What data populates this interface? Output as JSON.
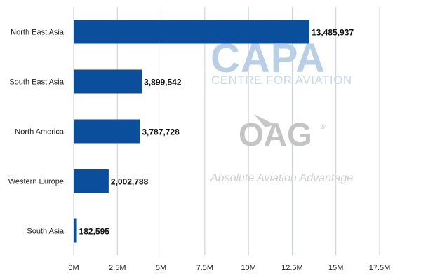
{
  "chart_data": {
    "type": "bar",
    "orientation": "horizontal",
    "categories": [
      "North East Asia",
      "South East Asia",
      "North America",
      "Western Europe",
      "South Asia"
    ],
    "values": [
      13485937,
      3899542,
      3787728,
      2002788,
      182595
    ],
    "value_labels": [
      "13,485,937",
      "3,899,542",
      "3,787,728",
      "2,002,788",
      "182,595"
    ],
    "xlim": [
      0,
      17500000
    ],
    "x_ticks": [
      0,
      2500000,
      5000000,
      7500000,
      10000000,
      12500000,
      15000000,
      17500000
    ],
    "x_tick_labels": [
      "0M",
      "2.5M",
      "5M",
      "7.5M",
      "10M",
      "12.5M",
      "15M",
      "17.5M"
    ],
    "grid": true,
    "bar_color": "#0b4f9c",
    "grid_color": "#c6ced6"
  },
  "watermark": {
    "capa": "CAPA",
    "capa_sub": "CENTRE FOR AVIATION",
    "oag": "OAG",
    "oag_reg": "®",
    "oag_tagline": "Absolute Aviation Advantage"
  }
}
